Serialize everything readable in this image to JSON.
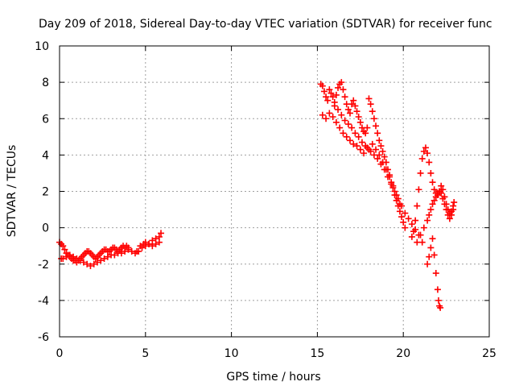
{
  "chart_data": {
    "type": "scatter",
    "title": "Day 209 of 2018, Sidereal Day-to-day VTEC variation (SDTVAR) for receiver func",
    "xlabel": "GPS time / hours",
    "ylabel": "SDTVAR / TECUs",
    "xlim": [
      0,
      25
    ],
    "ylim": [
      -6,
      10
    ],
    "xticks": [
      0,
      5,
      10,
      15,
      20,
      25
    ],
    "yticks": [
      -6,
      -4,
      -2,
      0,
      2,
      4,
      6,
      8,
      10
    ],
    "grid": true,
    "marker": "+",
    "series_color": "#ff0000",
    "series": [
      {
        "name": "SDTVAR",
        "x": [
          0.0,
          0.1,
          0.2,
          0.3,
          0.4,
          0.5,
          0.6,
          0.7,
          0.8,
          0.9,
          1.0,
          1.1,
          1.2,
          1.3,
          1.4,
          1.5,
          1.6,
          1.7,
          1.8,
          1.9,
          2.0,
          2.1,
          2.2,
          2.3,
          2.4,
          2.5,
          2.6,
          2.7,
          2.8,
          2.9,
          3.0,
          3.1,
          3.2,
          3.3,
          3.4,
          3.5,
          3.6,
          3.7,
          3.8,
          3.9,
          4.0,
          4.5,
          4.7,
          4.9,
          5.0,
          5.2,
          5.4,
          5.6,
          5.8,
          5.9,
          0.1,
          0.2,
          0.4,
          0.6,
          0.8,
          1.0,
          1.2,
          1.4,
          1.6,
          1.8,
          2.0,
          2.2,
          2.4,
          2.6,
          2.8,
          3.0,
          3.2,
          3.4,
          3.6,
          3.8,
          4.0,
          4.2,
          4.4,
          4.6,
          4.8,
          5.0,
          5.2,
          5.4,
          5.6,
          5.8,
          15.2,
          15.3,
          15.4,
          15.5,
          15.6,
          15.7,
          15.8,
          15.9,
          16.0,
          16.1,
          16.2,
          16.3,
          16.4,
          16.5,
          16.6,
          16.7,
          16.8,
          16.9,
          17.0,
          17.1,
          17.2,
          17.3,
          17.4,
          17.5,
          17.6,
          17.7,
          17.8,
          17.9,
          18.0,
          18.1,
          18.2,
          18.3,
          18.4,
          18.5,
          18.6,
          18.7,
          18.8,
          18.9,
          19.0,
          19.1,
          19.2,
          19.3,
          19.4,
          19.5,
          19.6,
          19.7,
          19.8,
          19.9,
          20.0,
          20.1,
          15.3,
          15.5,
          15.7,
          15.9,
          16.1,
          16.3,
          16.5,
          16.7,
          16.9,
          17.1,
          17.3,
          17.5,
          17.7,
          17.9,
          18.1,
          18.3,
          18.5,
          18.7,
          18.9,
          19.1,
          19.3,
          19.5,
          19.7,
          19.9,
          20.1,
          20.3,
          20.5,
          20.7,
          20.9,
          21.1,
          16.0,
          16.2,
          16.4,
          16.6,
          16.8,
          17.0,
          17.2,
          17.4,
          17.6,
          17.8,
          18.0,
          18.2,
          18.4,
          18.6,
          18.8,
          19.0,
          19.2,
          19.4,
          19.6,
          19.8,
          20.5,
          20.6,
          20.7,
          20.8,
          20.9,
          21.0,
          21.1,
          21.2,
          21.3,
          21.4,
          21.5,
          21.6,
          21.7,
          21.8,
          21.9,
          22.0,
          22.1,
          22.2,
          22.3,
          22.4,
          22.5,
          22.6,
          22.7,
          22.8,
          22.9,
          20.8,
          21.0,
          21.2,
          21.4,
          21.5,
          21.6,
          21.7,
          21.8,
          21.9,
          22.0,
          22.1,
          22.2,
          22.3,
          22.4,
          22.5,
          22.6,
          22.7,
          22.8,
          22.9,
          22.95,
          21.4,
          21.5,
          21.6,
          21.7,
          21.8,
          21.9,
          22.0,
          22.05,
          22.1,
          22.15
        ],
        "y": [
          -0.8,
          -0.9,
          -1.0,
          -1.2,
          -1.4,
          -1.5,
          -1.6,
          -1.7,
          -1.8,
          -1.8,
          -1.9,
          -1.8,
          -1.7,
          -1.6,
          -1.5,
          -1.4,
          -1.3,
          -1.3,
          -1.4,
          -1.5,
          -1.6,
          -1.7,
          -1.6,
          -1.5,
          -1.4,
          -1.3,
          -1.2,
          -1.2,
          -1.3,
          -1.3,
          -1.2,
          -1.1,
          -1.1,
          -1.2,
          -1.3,
          -1.2,
          -1.1,
          -1.0,
          -1.1,
          -1.0,
          -1.1,
          -1.3,
          -1.0,
          -0.9,
          -0.8,
          -0.9,
          -0.7,
          -0.6,
          -0.5,
          -0.3,
          -1.7,
          -1.7,
          -1.6,
          -1.5,
          -1.6,
          -1.7,
          -1.8,
          -1.9,
          -2.0,
          -2.1,
          -2.0,
          -1.9,
          -1.8,
          -1.7,
          -1.6,
          -1.5,
          -1.5,
          -1.4,
          -1.4,
          -1.3,
          -1.2,
          -1.3,
          -1.4,
          -1.3,
          -1.1,
          -1.0,
          -0.9,
          -1.0,
          -0.9,
          -0.8,
          7.9,
          7.8,
          7.5,
          7.2,
          7.0,
          7.6,
          7.4,
          7.2,
          6.9,
          7.3,
          7.7,
          7.9,
          8.0,
          7.6,
          7.2,
          6.8,
          6.5,
          6.3,
          6.8,
          7.0,
          6.7,
          6.4,
          6.1,
          5.8,
          5.5,
          5.3,
          5.2,
          5.5,
          7.1,
          6.8,
          6.4,
          6.0,
          5.6,
          5.2,
          4.8,
          4.5,
          4.2,
          3.9,
          3.6,
          3.2,
          2.9,
          2.5,
          2.2,
          1.8,
          1.5,
          1.2,
          0.9,
          0.6,
          0.3,
          0.0,
          6.2,
          6.0,
          6.3,
          6.1,
          5.8,
          5.5,
          5.2,
          5.0,
          4.8,
          4.6,
          4.5,
          4.3,
          4.1,
          4.4,
          4.2,
          4.0,
          3.8,
          3.5,
          3.2,
          2.8,
          2.4,
          2.0,
          1.6,
          1.2,
          0.8,
          0.5,
          0.2,
          -0.1,
          -0.4,
          -0.8,
          6.7,
          6.5,
          6.2,
          5.9,
          5.7,
          5.5,
          5.2,
          5.0,
          4.7,
          4.5,
          4.3,
          4.6,
          4.3,
          4.0,
          3.6,
          3.2,
          2.8,
          2.3,
          1.8,
          1.3,
          -0.5,
          -0.2,
          0.4,
          1.2,
          2.1,
          3.0,
          3.8,
          4.2,
          4.4,
          4.1,
          3.6,
          3.0,
          2.5,
          2.1,
          1.9,
          1.8,
          2.0,
          2.3,
          2.1,
          1.7,
          1.3,
          1.0,
          0.8,
          0.9,
          1.2,
          -0.8,
          -0.4,
          0.0,
          0.4,
          0.7,
          1.0,
          1.3,
          1.5,
          1.7,
          1.9,
          2.0,
          1.9,
          1.6,
          1.3,
          1.0,
          0.7,
          0.5,
          0.7,
          1.0,
          1.4,
          -2.0,
          -1.6,
          -1.1,
          -0.6,
          -1.5,
          -2.5,
          -3.4,
          -4.0,
          -4.3,
          -4.4
        ]
      }
    ]
  }
}
